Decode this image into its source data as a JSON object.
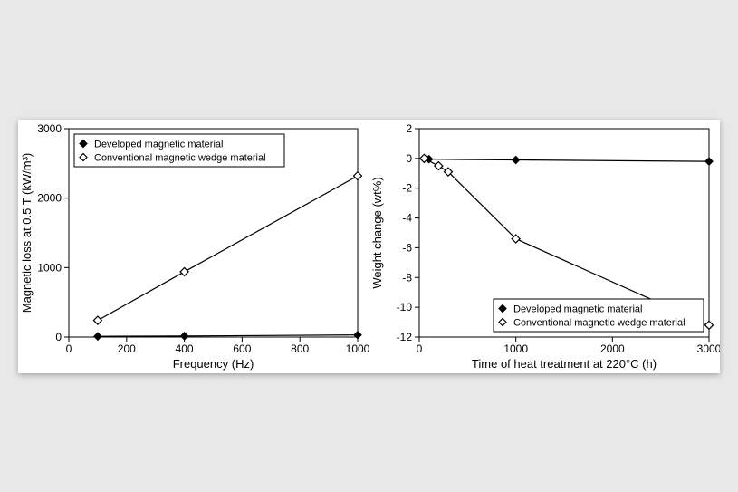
{
  "background_color": "#e8e8e8",
  "panel": {
    "background_color": "#ffffff",
    "shadow": "0 2px 6px rgba(0,0,0,0.3)"
  },
  "chart_left": {
    "type": "line+scatter",
    "xlabel": "Frequency (Hz)",
    "ylabel": "Magnetic loss at 0.5 T (kW/m³)",
    "xlim": [
      0,
      1000
    ],
    "ylim": [
      0,
      3000
    ],
    "xtick_step": 200,
    "ytick_step": 1000,
    "tick_fontsize": 12,
    "label_fontsize": 13,
    "grid": false,
    "border_color": "#000000",
    "background_color": "#ffffff",
    "legend": {
      "position": "top-left-inside",
      "border_color": "#000000",
      "background_color": "#ffffff",
      "fontsize": 11,
      "items": [
        {
          "marker": "diamond-filled",
          "label": "Developed magnetic material"
        },
        {
          "marker": "diamond-open",
          "label": "Conventional magnetic wedge material"
        }
      ]
    },
    "series": [
      {
        "name": "Developed magnetic material",
        "marker": "diamond-filled",
        "marker_size": 8,
        "line_width": 1.2,
        "color": "#000000",
        "fill": "#000000",
        "x": [
          100,
          400,
          1000
        ],
        "y": [
          10,
          15,
          30
        ]
      },
      {
        "name": "Conventional magnetic wedge material",
        "marker": "diamond-open",
        "marker_size": 9,
        "line_width": 1.2,
        "color": "#000000",
        "fill": "#ffffff",
        "x": [
          100,
          400,
          1000
        ],
        "y": [
          240,
          940,
          2320
        ]
      }
    ]
  },
  "chart_right": {
    "type": "line+scatter",
    "xlabel": "Time of heat treatment at 220°C (h)",
    "ylabel": "Weight change (wt%)",
    "xlim": [
      0,
      3000
    ],
    "ylim": [
      -12,
      2
    ],
    "xtick_step": 1000,
    "ytick_step": 2,
    "tick_fontsize": 12,
    "label_fontsize": 13,
    "grid": false,
    "border_color": "#000000",
    "background_color": "#ffffff",
    "legend": {
      "position": "bottom-right-inside",
      "border_color": "#000000",
      "background_color": "#ffffff",
      "fontsize": 11,
      "items": [
        {
          "marker": "diamond-filled",
          "label": "Developed magnetic material"
        },
        {
          "marker": "diamond-open",
          "label": "Conventional magnetic wedge material"
        }
      ]
    },
    "series": [
      {
        "name": "Developed magnetic material",
        "marker": "diamond-filled",
        "marker_size": 8,
        "line_width": 1.2,
        "color": "#000000",
        "fill": "#000000",
        "x": [
          100,
          1000,
          3000
        ],
        "y": [
          -0.05,
          -0.1,
          -0.2
        ]
      },
      {
        "name": "Conventional magnetic wedge material",
        "marker": "diamond-open",
        "marker_size": 9,
        "line_width": 1.2,
        "color": "#000000",
        "fill": "#ffffff",
        "x": [
          50,
          200,
          300,
          1000,
          3000
        ],
        "y": [
          0.0,
          -0.5,
          -0.9,
          -5.4,
          -11.2
        ]
      }
    ]
  }
}
